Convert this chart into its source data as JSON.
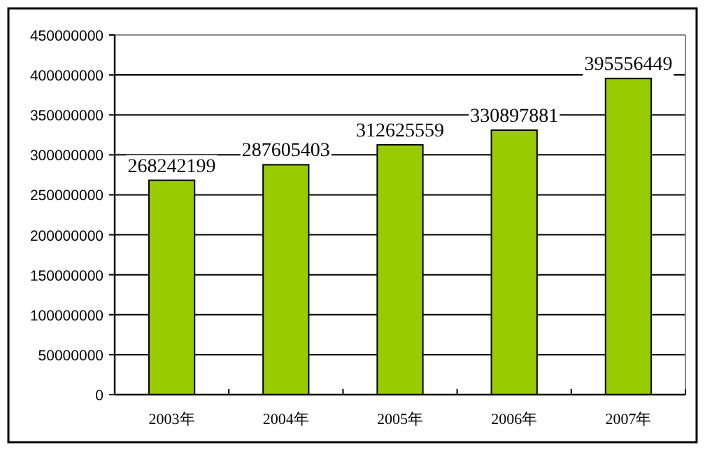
{
  "chart_data": {
    "type": "bar",
    "categories": [
      "2003年",
      "2004年",
      "2005年",
      "2006年",
      "2007年"
    ],
    "values": [
      268242199,
      287605403,
      312625559,
      330897881,
      395556449
    ],
    "color": "#99cc00",
    "ylim": [
      0,
      450000000
    ],
    "yticks": [
      0,
      50000000,
      100000000,
      150000000,
      200000000,
      250000000,
      300000000,
      350000000,
      400000000,
      450000000
    ],
    "grid": "y",
    "data_labels": true
  }
}
